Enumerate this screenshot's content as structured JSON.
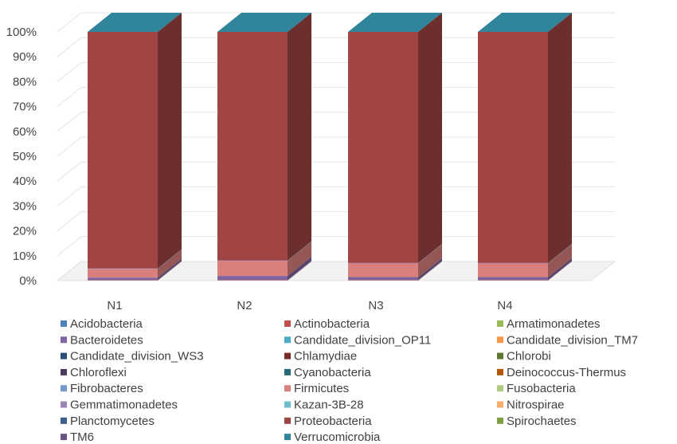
{
  "chart_data": {
    "type": "bar",
    "stacked": true,
    "percent_stacked": true,
    "three_d": true,
    "categories": [
      "N1",
      "N2",
      "N3",
      "N4"
    ],
    "y_ticks": [
      "0%",
      "10%",
      "20%",
      "30%",
      "40%",
      "50%",
      "60%",
      "70%",
      "80%",
      "90%",
      "100%"
    ],
    "ylim": [
      0,
      100
    ],
    "grid": true,
    "legend_position": "bottom",
    "series": [
      {
        "name": "Acidobacteria",
        "color": "#4F81BD",
        "values": [
          0.1,
          0.1,
          0.1,
          0.1
        ]
      },
      {
        "name": "Actinobacteria",
        "color": "#C0504D",
        "values": [
          0.2,
          0.2,
          0.2,
          0.2
        ]
      },
      {
        "name": "Armatimonadetes",
        "color": "#9BBB59",
        "values": [
          0.0,
          0.0,
          0.0,
          0.0
        ]
      },
      {
        "name": "Bacteroidetes",
        "color": "#8064A2",
        "values": [
          0.8,
          1.5,
          1.0,
          1.0
        ]
      },
      {
        "name": "Candidate_division_OP11",
        "color": "#4BACC6",
        "values": [
          0.0,
          0.0,
          0.0,
          0.0
        ]
      },
      {
        "name": "Candidate_division_TM7",
        "color": "#F79646",
        "values": [
          0.0,
          0.0,
          0.0,
          0.0
        ]
      },
      {
        "name": "Candidate_division_WS3",
        "color": "#2C4D75",
        "values": [
          0.0,
          0.0,
          0.0,
          0.0
        ]
      },
      {
        "name": "Chlamydiae",
        "color": "#772C2A",
        "values": [
          0.0,
          0.0,
          0.0,
          0.0
        ]
      },
      {
        "name": "Chlorobi",
        "color": "#5F7530",
        "values": [
          0.0,
          0.0,
          0.0,
          0.0
        ]
      },
      {
        "name": "Chloroflexi",
        "color": "#4D3B62",
        "values": [
          0.1,
          0.1,
          0.1,
          0.1
        ]
      },
      {
        "name": "Cyanobacteria",
        "color": "#276A7C",
        "values": [
          0.0,
          0.0,
          0.0,
          0.0
        ]
      },
      {
        "name": "Deinococcus-Thermus",
        "color": "#B65708",
        "values": [
          0.0,
          0.0,
          0.0,
          0.0
        ]
      },
      {
        "name": "Fibrobacteres",
        "color": "#729ACA",
        "values": [
          0.0,
          0.0,
          0.0,
          0.0
        ]
      },
      {
        "name": "Firmicutes",
        "color": "#D9807E",
        "values": [
          3.5,
          6.0,
          5.5,
          5.5
        ]
      },
      {
        "name": "Fusobacteria",
        "color": "#AFCB7E",
        "values": [
          0.0,
          0.0,
          0.0,
          0.0
        ]
      },
      {
        "name": "Gemmatimonadetes",
        "color": "#9A84B5",
        "values": [
          0.1,
          0.1,
          0.1,
          0.1
        ]
      },
      {
        "name": "Kazan-3B-28",
        "color": "#6FBDD1",
        "values": [
          0.0,
          0.0,
          0.0,
          0.0
        ]
      },
      {
        "name": "Nitrospirae",
        "color": "#F9AB6B",
        "values": [
          0.0,
          0.0,
          0.0,
          0.0
        ]
      },
      {
        "name": "Planctomycetes",
        "color": "#3A5F8C",
        "values": [
          0.1,
          0.1,
          0.1,
          0.1
        ]
      },
      {
        "name": "Proteobacteria",
        "color": "#A04543",
        "values": [
          95.0,
          91.8,
          92.9,
          92.9
        ]
      },
      {
        "name": "Spirochaetes",
        "color": "#7E9C44",
        "values": [
          0.0,
          0.0,
          0.0,
          0.0
        ]
      },
      {
        "name": "TM6",
        "color": "#6A5387",
        "values": [
          0.0,
          0.0,
          0.0,
          0.0
        ]
      },
      {
        "name": "Verrucomicrobia",
        "color": "#31859B",
        "values": [
          0.0,
          0.0,
          0.0,
          0.0
        ]
      }
    ]
  }
}
